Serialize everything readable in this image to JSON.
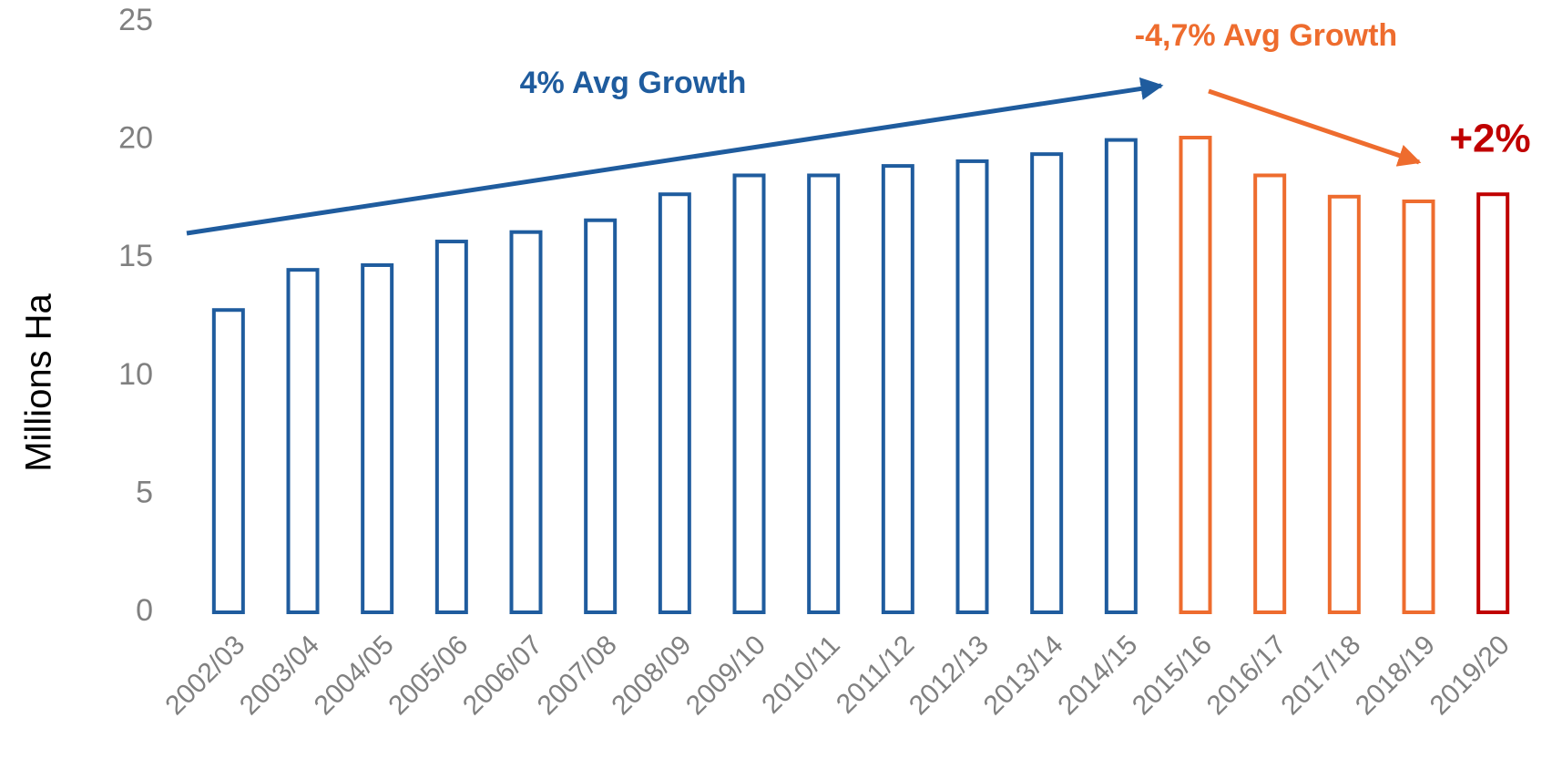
{
  "chart_data": {
    "type": "bar",
    "y_label": "Millions Ha",
    "categories": [
      "2002/03",
      "2003/04",
      "2004/05",
      "2005/06",
      "2006/07",
      "2007/08",
      "2008/09",
      "2009/10",
      "2010/11",
      "2011/12",
      "2012/13",
      "2013/14",
      "2014/15",
      "2015/16",
      "2016/17",
      "2017/18",
      "2018/19",
      "2019/20"
    ],
    "values": [
      12.8,
      14.5,
      14.7,
      15.7,
      16.1,
      16.6,
      17.7,
      18.5,
      18.5,
      18.9,
      19.1,
      19.4,
      20.0,
      20.1,
      18.5,
      17.6,
      17.4,
      17.7
    ],
    "colors": [
      "#1f5c9e",
      "#1f5c9e",
      "#1f5c9e",
      "#1f5c9e",
      "#1f5c9e",
      "#1f5c9e",
      "#1f5c9e",
      "#1f5c9e",
      "#1f5c9e",
      "#1f5c9e",
      "#1f5c9e",
      "#1f5c9e",
      "#1f5c9e",
      "#ee6c2e",
      "#ee6c2e",
      "#ee6c2e",
      "#ee6c2e",
      "#c00000"
    ],
    "ylim": [
      0,
      25
    ],
    "yticks": [
      0,
      5,
      10,
      15,
      20,
      25
    ],
    "grid": false,
    "annotations": [
      {
        "text": "4% Avg Growth",
        "color": "#1f5c9e"
      },
      {
        "text": "-4,7% Avg Growth",
        "color": "#ee6c2e"
      },
      {
        "text": "+2%",
        "color": "#c00000"
      }
    ]
  }
}
